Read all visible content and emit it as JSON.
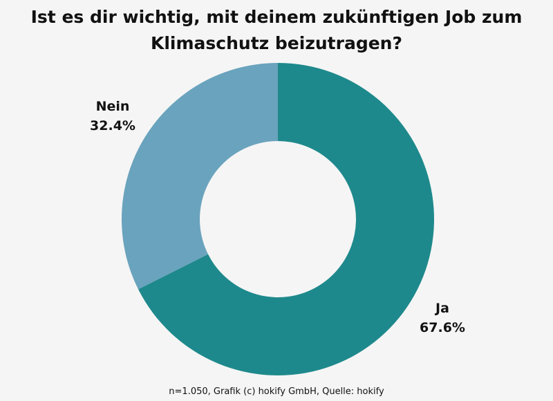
{
  "chart_data": {
    "type": "pie",
    "donut": true,
    "title": "Ist es dir wichtig, mit deinem zukünftigen Job zum Klimaschutz beizutragen?",
    "slices": [
      {
        "label": "Ja",
        "value": 67.6,
        "value_label": "67.6%",
        "color": "#1e898c"
      },
      {
        "label": "Nein",
        "value": 32.4,
        "value_label": "32.4%",
        "color": "#6aa3bd"
      }
    ],
    "legend": "none",
    "footer": "n=1.050, Grafik (c) hokify GmbH, Quelle: hokify"
  }
}
